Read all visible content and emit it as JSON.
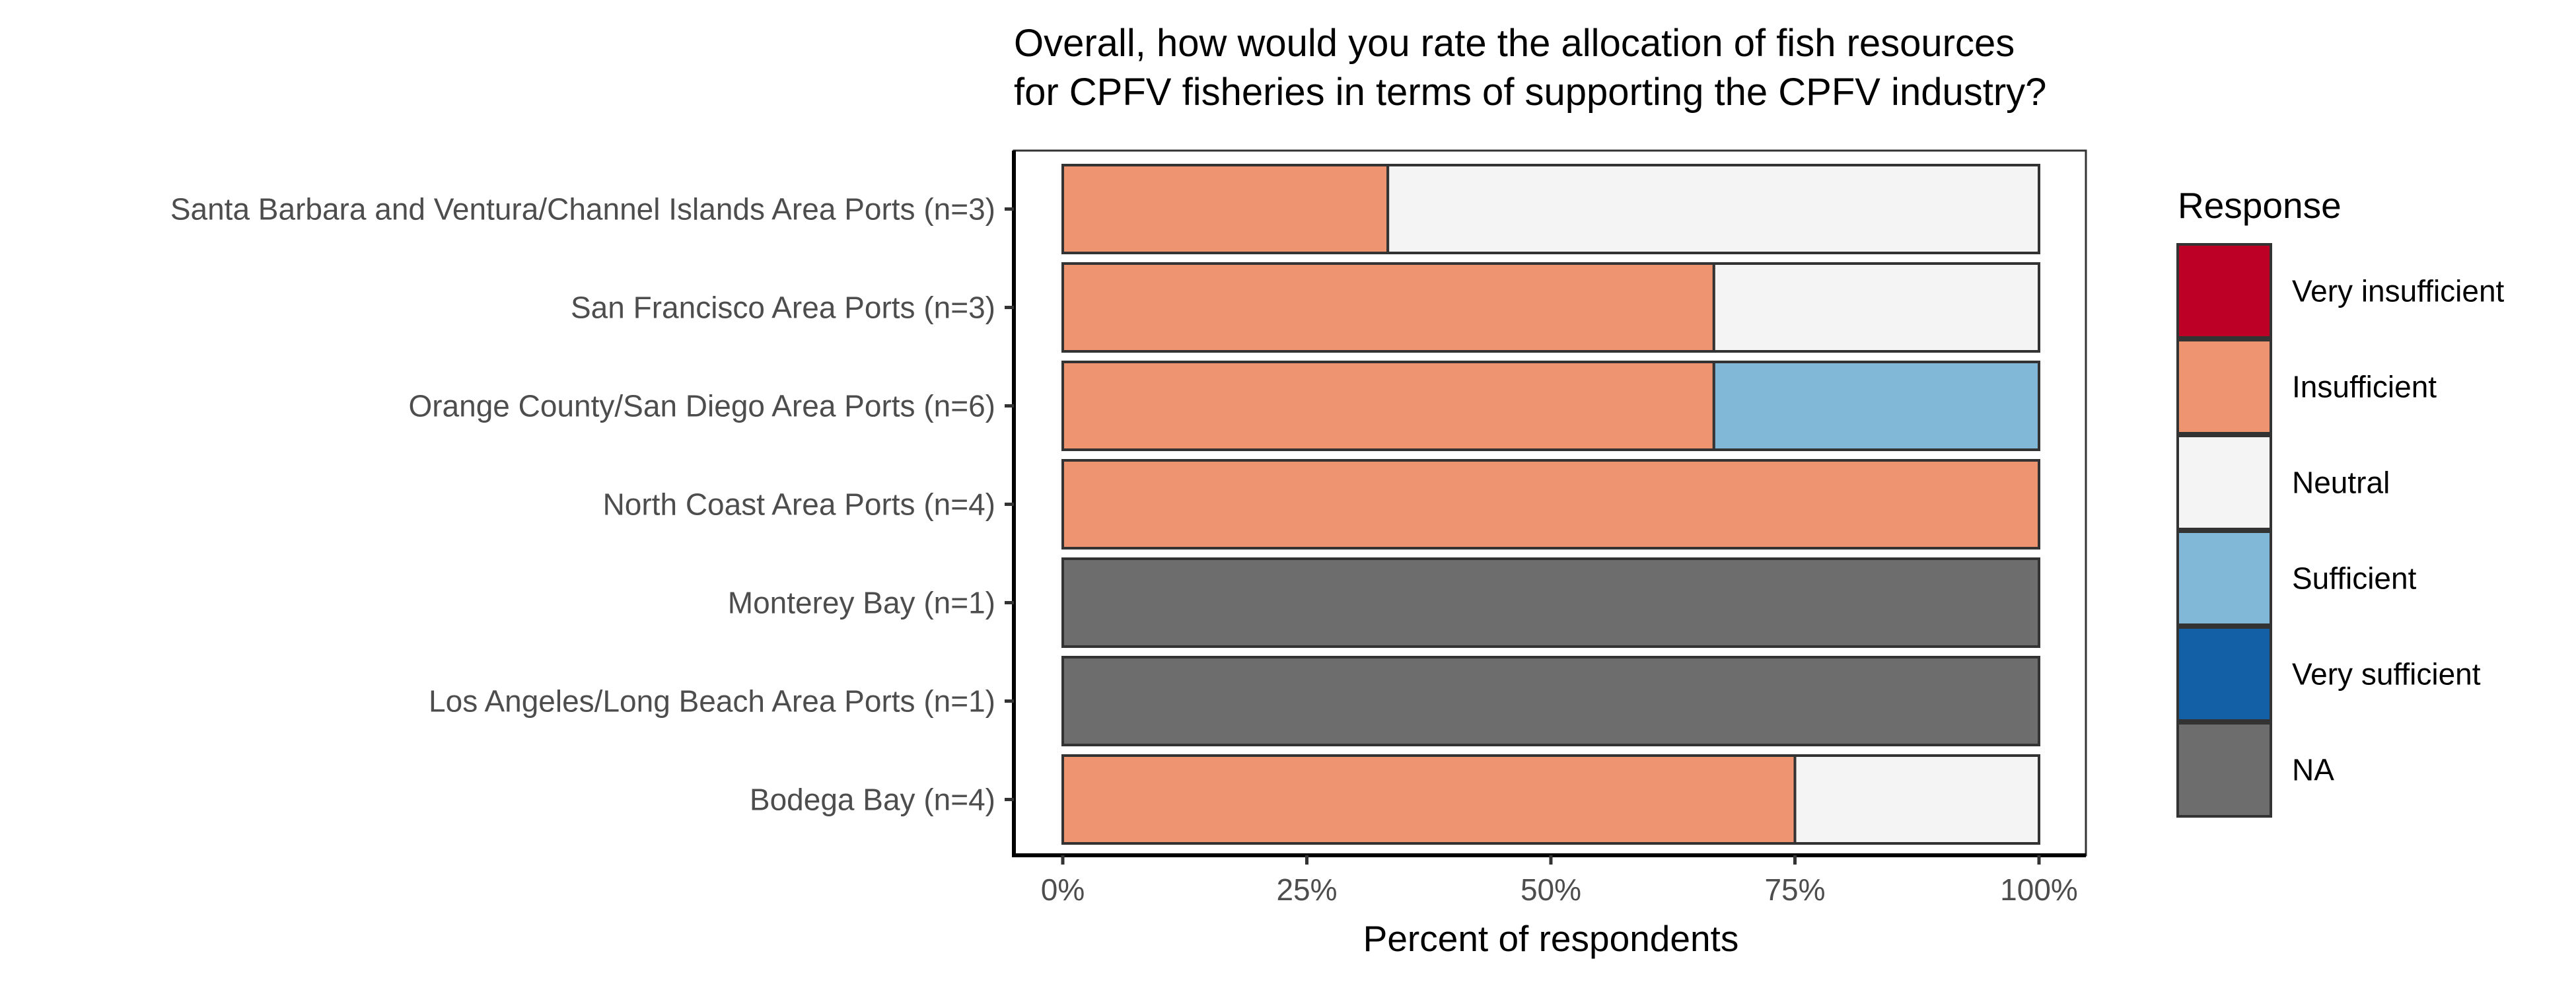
{
  "chart_data": {
    "type": "bar",
    "orientation": "horizontal",
    "stacked": true,
    "title_lines": [
      "Overall, how would you rate the allocation of fish resources",
      "for CPFV fisheries in terms of supporting the CPFV industry?"
    ],
    "xlabel": "Percent of respondents",
    "ylabel": "",
    "xlim": [
      0,
      100
    ],
    "x_ticks": [
      0,
      25,
      50,
      75,
      100
    ],
    "x_tick_labels": [
      "0%",
      "25%",
      "50%",
      "75%",
      "100%"
    ],
    "grid": false,
    "categories": [
      "Santa Barbara and Ventura/Channel Islands Area Ports (n=3)",
      "San Francisco Area Ports (n=3)",
      "Orange County/San Diego Area Ports (n=6)",
      "North Coast Area Ports (n=4)",
      "Monterey Bay (n=1)",
      "Los Angeles/Long Beach Area Ports (n=1)",
      "Bodega Bay (n=4)"
    ],
    "series": [
      {
        "name": "Very insufficient",
        "color": "#BD0026",
        "values": [
          0,
          0,
          0,
          0,
          0,
          0,
          0
        ]
      },
      {
        "name": "Insufficient",
        "color": "#EF9470",
        "values": [
          33.3,
          66.7,
          66.7,
          100,
          0,
          0,
          75
        ]
      },
      {
        "name": "Neutral",
        "color": "#F4F4F4",
        "values": [
          66.7,
          33.3,
          0,
          0,
          0,
          0,
          25
        ]
      },
      {
        "name": "Sufficient",
        "color": "#82B8D7",
        "values": [
          0,
          0,
          33.3,
          0,
          0,
          0,
          0
        ]
      },
      {
        "name": "Very sufficient",
        "color": "#1460A6",
        "values": [
          0,
          0,
          0,
          0,
          0,
          0,
          0
        ]
      },
      {
        "name": "NA",
        "color": "#6D6D6D",
        "values": [
          0,
          0,
          0,
          0,
          100,
          100,
          0
        ]
      }
    ],
    "legend_title": "Response",
    "legend_position": "right"
  }
}
